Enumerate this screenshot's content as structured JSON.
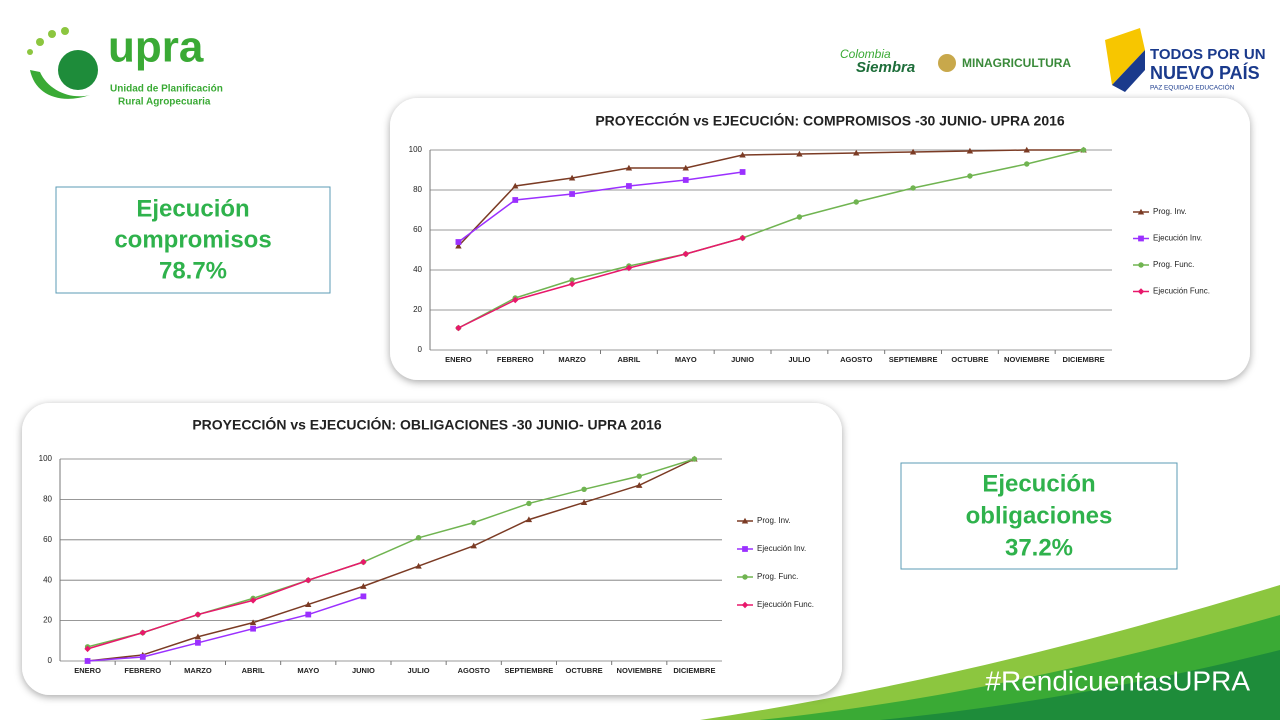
{
  "header": {
    "logo_name": "upra",
    "logo_subtitle": [
      "Unidad de Planificación",
      "Rural Agropecuaria"
    ],
    "partner_1": [
      "Colombia",
      "Siembra"
    ],
    "partner_2": "MINAGRICULTURA",
    "partner_3": [
      "TODOS POR UN",
      "NUEVO PAÍS"
    ],
    "partner_3_motto": "PAZ  EQUIDAD  EDUCACIÓN"
  },
  "boxes": [
    {
      "lines": [
        "Ejecución",
        "compromisos",
        "78.7%"
      ]
    },
    {
      "lines": [
        "Ejecución",
        "obligaciones",
        "37.2%"
      ]
    }
  ],
  "hashtag": "#RendicuentasUPRA",
  "chart_data": [
    {
      "type": "line",
      "title": "PROYECCIÓN vs EJECUCIÓN: COMPROMISOS -30 JUNIO- UPRA 2016",
      "categories": [
        "ENERO",
        "FEBRERO",
        "MARZO",
        "ABRIL",
        "MAYO",
        "JUNIO",
        "JULIO",
        "AGOSTO",
        "SEPTIEMBRE",
        "OCTUBRE",
        "NOVIEMBRE",
        "DICIEMBRE"
      ],
      "ylim": [
        0,
        100
      ],
      "yticks": [
        0,
        20,
        40,
        60,
        80,
        100
      ],
      "grid": true,
      "legend": "right",
      "series": [
        {
          "name": "Prog.  Inv.",
          "color": "#7b3b24",
          "marker": "triangle",
          "values": [
            52,
            82,
            86,
            91,
            91,
            97.5,
            98,
            98.5,
            99,
            99.5,
            100,
            100
          ]
        },
        {
          "name": "Ejecución  Inv.",
          "color": "#9b30ff",
          "marker": "square",
          "values": [
            54,
            75,
            78,
            82,
            85,
            89,
            null,
            null,
            null,
            null,
            null,
            null
          ]
        },
        {
          "name": "Prog.  Func.",
          "color": "#70b451",
          "marker": "circle",
          "values": [
            11,
            26,
            35,
            42,
            48,
            56,
            66.5,
            74,
            81,
            87,
            93,
            100
          ]
        },
        {
          "name": "Ejecución  Func.",
          "color": "#e8186b",
          "marker": "diamond",
          "values": [
            11,
            25,
            33,
            41,
            48,
            56,
            null,
            null,
            null,
            null,
            null,
            null
          ]
        }
      ]
    },
    {
      "type": "line",
      "title": "PROYECCIÓN vs EJECUCIÓN: OBLIGACIONES -30 JUNIO- UPRA 2016",
      "categories": [
        "ENERO",
        "FEBRERO",
        "MARZO",
        "ABRIL",
        "MAYO",
        "JUNIO",
        "JULIO",
        "AGOSTO",
        "SEPTIEMBRE",
        "OCTUBRE",
        "NOVIEMBRE",
        "DICIEMBRE"
      ],
      "ylim": [
        0,
        100
      ],
      "yticks": [
        0,
        20,
        40,
        60,
        80,
        100
      ],
      "grid": true,
      "legend": "right",
      "series": [
        {
          "name": "Prog. Inv.",
          "color": "#7b3b24",
          "marker": "triangle",
          "values": [
            0,
            3,
            12,
            19,
            28,
            37,
            47,
            57,
            70,
            78.5,
            87,
            100
          ]
        },
        {
          "name": "Ejecución Inv.",
          "color": "#9b30ff",
          "marker": "square",
          "values": [
            0,
            2,
            9,
            16,
            23,
            32,
            null,
            null,
            null,
            null,
            null,
            null
          ]
        },
        {
          "name": "Prog. Func.",
          "color": "#70b451",
          "marker": "circle",
          "values": [
            7,
            14,
            23,
            31,
            40,
            49,
            61,
            68.5,
            78,
            85,
            91.5,
            100
          ]
        },
        {
          "name": "Ejecución Func.",
          "color": "#e8186b",
          "marker": "diamond",
          "values": [
            6,
            14,
            23,
            30,
            40,
            49,
            null,
            null,
            null,
            null,
            null,
            null
          ]
        }
      ]
    }
  ]
}
